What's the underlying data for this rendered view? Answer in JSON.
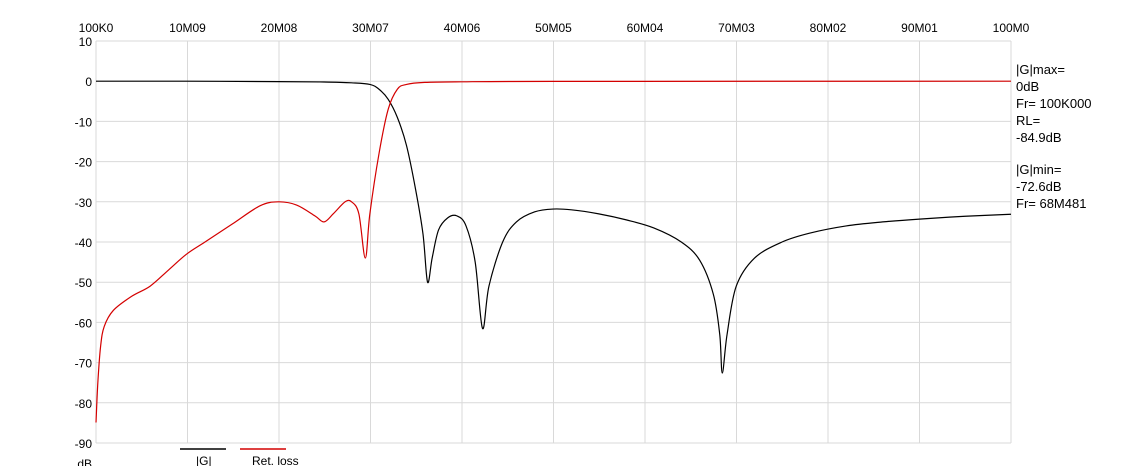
{
  "chart_data": {
    "type": "line",
    "title": "",
    "ylabel": "dB",
    "xlim": [
      0.1,
      100.0
    ],
    "ylim": [
      -90,
      10
    ],
    "x_tick_labels": [
      "100K0",
      "10M09",
      "20M08",
      "30M07",
      "40M06",
      "50M05",
      "60M04",
      "70M03",
      "80M02",
      "90M01",
      "100M0"
    ],
    "y_tick_labels": [
      "10",
      "0",
      "-10",
      "-20",
      "-30",
      "-40",
      "-50",
      "-60",
      "-70",
      "-80",
      "-90"
    ],
    "grid": true,
    "legend_position": "bottom-left",
    "series": [
      {
        "name": "|G|",
        "color": "#000000",
        "points": [
          [
            0.1,
            0
          ],
          [
            10,
            0
          ],
          [
            20,
            -0.1
          ],
          [
            25,
            -0.2
          ],
          [
            28,
            -0.4
          ],
          [
            30,
            -0.8
          ],
          [
            31,
            -2
          ],
          [
            32,
            -4.5
          ],
          [
            33,
            -9
          ],
          [
            34,
            -16
          ],
          [
            35,
            -27
          ],
          [
            35.8,
            -38
          ],
          [
            36.3,
            -50
          ],
          [
            36.8,
            -44
          ],
          [
            37.5,
            -37
          ],
          [
            38.5,
            -34
          ],
          [
            39.5,
            -33.5
          ],
          [
            40.5,
            -36
          ],
          [
            41.5,
            -45
          ],
          [
            42.3,
            -61.5
          ],
          [
            43,
            -51
          ],
          [
            44.5,
            -40
          ],
          [
            46,
            -35
          ],
          [
            48,
            -32.5
          ],
          [
            50,
            -31.8
          ],
          [
            52,
            -32
          ],
          [
            55,
            -33
          ],
          [
            58,
            -34.5
          ],
          [
            61,
            -36.5
          ],
          [
            64,
            -40
          ],
          [
            66,
            -44.5
          ],
          [
            67.5,
            -53
          ],
          [
            68.2,
            -63
          ],
          [
            68.48,
            -72.6
          ],
          [
            69,
            -63
          ],
          [
            70,
            -51
          ],
          [
            72,
            -44
          ],
          [
            75,
            -40
          ],
          [
            78,
            -37.8
          ],
          [
            82,
            -36
          ],
          [
            86,
            -35
          ],
          [
            90,
            -34.3
          ],
          [
            95,
            -33.6
          ],
          [
            100,
            -33.1
          ]
        ]
      },
      {
        "name": "Ret. loss",
        "color": "#d40000",
        "points": [
          [
            0.1,
            -84.9
          ],
          [
            0.3,
            -75
          ],
          [
            0.6,
            -66
          ],
          [
            1,
            -61
          ],
          [
            2,
            -57
          ],
          [
            4,
            -53.5
          ],
          [
            6,
            -51
          ],
          [
            8,
            -47
          ],
          [
            10,
            -43
          ],
          [
            12,
            -40
          ],
          [
            15,
            -35.5
          ],
          [
            18,
            -31
          ],
          [
            20,
            -30
          ],
          [
            22,
            -30.8
          ],
          [
            24,
            -33.5
          ],
          [
            25,
            -35
          ],
          [
            26,
            -33
          ],
          [
            27.3,
            -30
          ],
          [
            28,
            -30
          ],
          [
            28.8,
            -33
          ],
          [
            29.5,
            -44
          ],
          [
            30,
            -33
          ],
          [
            31,
            -18
          ],
          [
            32,
            -7
          ],
          [
            33,
            -2
          ],
          [
            34,
            -0.8
          ],
          [
            36,
            -0.3
          ],
          [
            40,
            -0.15
          ],
          [
            50,
            -0.05
          ],
          [
            100,
            0
          ]
        ]
      }
    ]
  },
  "info": {
    "gmax_label": "|G|max=",
    "gmax_value": "0dB",
    "gmax_freq": "Fr= 100K000",
    "rl_label": "RL=",
    "rl_value": "-84.9dB",
    "gmin_label": "|G|min=",
    "gmin_value": "-72.6dB",
    "gmin_freq": "Fr= 68M481"
  }
}
